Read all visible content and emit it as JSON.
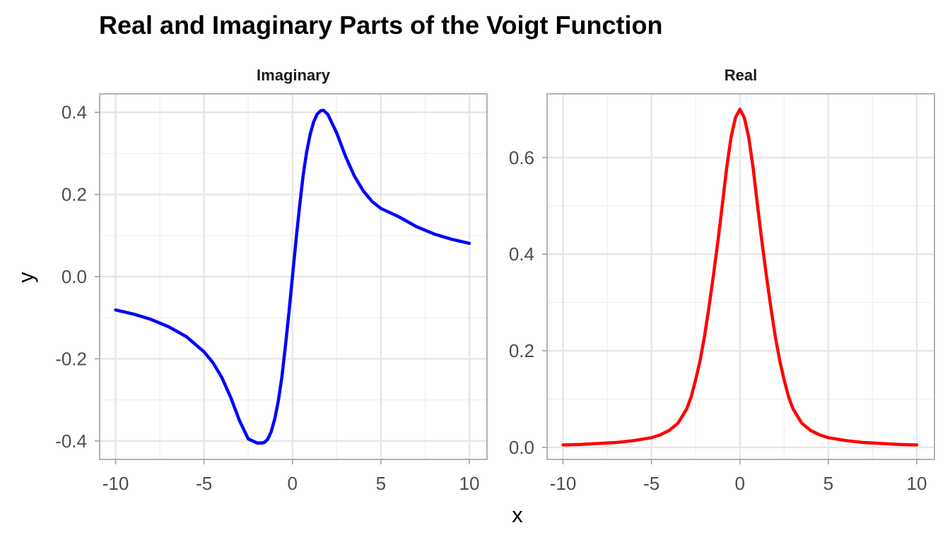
{
  "chart_data": {
    "type": "line",
    "title": "Real and Imaginary Parts of the Voigt Function",
    "xlabel": "x",
    "ylabel": "y",
    "grid": true,
    "legend": "none",
    "panels": [
      {
        "name": "Imaginary",
        "color": "#0000ff",
        "xlim": [
          -10.9,
          11
        ],
        "ylim": [
          -0.445,
          0.445
        ],
        "x_ticks": [
          -10,
          -5,
          0,
          5,
          10
        ],
        "x_tick_labels": [
          "-10",
          "-5",
          "0",
          "5",
          "10"
        ],
        "y_ticks": [
          -0.4,
          -0.2,
          0.0,
          0.2,
          0.4
        ],
        "y_tick_labels": [
          "-0.4",
          "-0.2",
          "0.0",
          "0.2",
          "0.4"
        ],
        "series": [
          {
            "x": [
              -10,
              -9,
              -8,
              -7,
              -6,
              -5,
              -4.5,
              -4,
              -3.5,
              -3,
              -2.5,
              -2,
              -1.75,
              -1.6,
              -1.4,
              -1.2,
              -1,
              -0.8,
              -0.6,
              -0.4,
              -0.2,
              0,
              0.2,
              0.4,
              0.6,
              0.8,
              1,
              1.2,
              1.4,
              1.6,
              1.75,
              2,
              2.5,
              3,
              3.5,
              4,
              4.5,
              5,
              6,
              7,
              8,
              9,
              10
            ],
            "y": [
              -0.081,
              -0.091,
              -0.104,
              -0.122,
              -0.146,
              -0.183,
              -0.209,
              -0.245,
              -0.293,
              -0.35,
              -0.395,
              -0.405,
              -0.405,
              -0.404,
              -0.396,
              -0.377,
              -0.346,
              -0.303,
              -0.245,
              -0.17,
              -0.088,
              0.0,
              0.088,
              0.17,
              0.245,
              0.303,
              0.346,
              0.377,
              0.396,
              0.404,
              0.405,
              0.395,
              0.35,
              0.293,
              0.245,
              0.209,
              0.183,
              0.166,
              0.146,
              0.122,
              0.104,
              0.091,
              0.081
            ]
          }
        ]
      },
      {
        "name": "Real",
        "color": "#ff0000",
        "xlim": [
          -10.9,
          11
        ],
        "ylim": [
          -0.025,
          0.732
        ],
        "x_ticks": [
          -10,
          -5,
          0,
          5,
          10
        ],
        "x_tick_labels": [
          "-10",
          "-5",
          "0",
          "5",
          "10"
        ],
        "y_ticks": [
          0.0,
          0.2,
          0.4,
          0.6
        ],
        "y_tick_labels": [
          "0.0",
          "0.2",
          "0.4",
          "0.6"
        ],
        "series": [
          {
            "x": [
              -10,
              -9,
              -8,
              -7,
              -6,
              -5,
              -4.5,
              -4,
              -3.5,
              -3,
              -2.75,
              -2.5,
              -2.25,
              -2,
              -1.75,
              -1.5,
              -1.25,
              -1,
              -0.75,
              -0.5,
              -0.25,
              0,
              0.25,
              0.5,
              0.75,
              1,
              1.25,
              1.5,
              1.75,
              2,
              2.25,
              2.5,
              2.75,
              3,
              3.5,
              4,
              4.5,
              5,
              6,
              7,
              8,
              9,
              10
            ],
            "y": [
              0.005,
              0.006,
              0.008,
              0.01,
              0.014,
              0.02,
              0.026,
              0.035,
              0.05,
              0.08,
              0.105,
              0.14,
              0.18,
              0.23,
              0.29,
              0.355,
              0.425,
              0.5,
              0.578,
              0.642,
              0.683,
              0.7,
              0.683,
              0.642,
              0.578,
              0.5,
              0.425,
              0.355,
              0.29,
              0.23,
              0.18,
              0.14,
              0.105,
              0.08,
              0.05,
              0.035,
              0.026,
              0.02,
              0.014,
              0.01,
              0.008,
              0.006,
              0.005
            ]
          }
        ]
      }
    ]
  }
}
